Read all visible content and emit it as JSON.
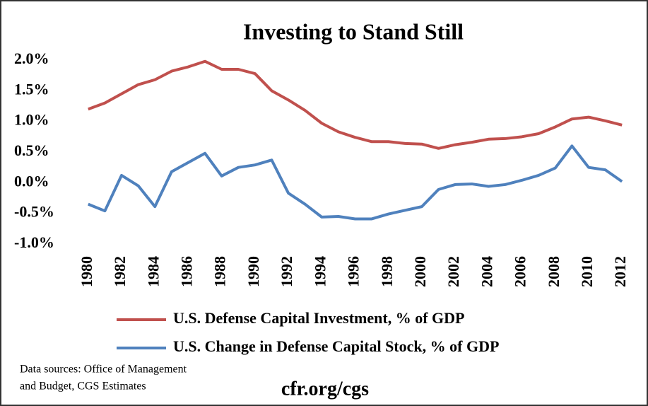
{
  "chart_data": {
    "type": "line",
    "title": "Investing to Stand Still",
    "x": [
      1980,
      1981,
      1982,
      1983,
      1984,
      1985,
      1986,
      1987,
      1988,
      1989,
      1990,
      1991,
      1992,
      1993,
      1994,
      1995,
      1996,
      1997,
      1998,
      1999,
      2000,
      2001,
      2002,
      2003,
      2004,
      2005,
      2006,
      2007,
      2008,
      2009,
      2010,
      2011,
      2012
    ],
    "series": [
      {
        "name": "U.S. Defense Capital Investment, % of GDP",
        "color": "#c0504d",
        "values": [
          1.2,
          1.3,
          1.45,
          1.6,
          1.68,
          1.82,
          1.89,
          1.98,
          1.85,
          1.85,
          1.78,
          1.5,
          1.35,
          1.18,
          0.97,
          0.83,
          0.74,
          0.67,
          0.67,
          0.64,
          0.63,
          0.56,
          0.62,
          0.66,
          0.71,
          0.72,
          0.75,
          0.8,
          0.91,
          1.04,
          1.07,
          1.01,
          0.94
        ]
      },
      {
        "name": "U.S. Change in Defense Capital Stock, % of GDP",
        "color": "#4f81bd",
        "values": [
          -0.35,
          -0.46,
          0.12,
          -0.05,
          -0.39,
          0.18,
          0.33,
          0.48,
          0.11,
          0.25,
          0.29,
          0.37,
          -0.17,
          -0.35,
          -0.56,
          -0.55,
          -0.59,
          -0.59,
          -0.51,
          -0.45,
          -0.39,
          -0.11,
          -0.03,
          -0.02,
          -0.06,
          -0.03,
          0.04,
          0.12,
          0.24,
          0.6,
          0.25,
          0.21,
          0.02
        ]
      }
    ],
    "xlim": [
      1979.5,
      2012.5
    ],
    "xticks": [
      1980,
      1982,
      1984,
      1986,
      1988,
      1990,
      1992,
      1994,
      1996,
      1998,
      2000,
      2002,
      2004,
      2006,
      2008,
      2010,
      2012
    ],
    "ylim": [
      -1,
      2
    ],
    "yticks": [
      {
        "value": -1,
        "label": "-1.0%"
      },
      {
        "value": -0.5,
        "label": "-0.5%"
      },
      {
        "value": 0,
        "label": "0.0%"
      },
      {
        "value": 0.5,
        "label": "0.5%"
      },
      {
        "value": 1,
        "label": "1.0%"
      },
      {
        "value": 1.5,
        "label": "1.5%"
      },
      {
        "value": 2,
        "label": "2.0%"
      }
    ],
    "grid": false,
    "source": [
      "Data sources: Office of Management",
      "and Budget, CGS Estimates"
    ],
    "footer": "cfr.org/cgs"
  }
}
